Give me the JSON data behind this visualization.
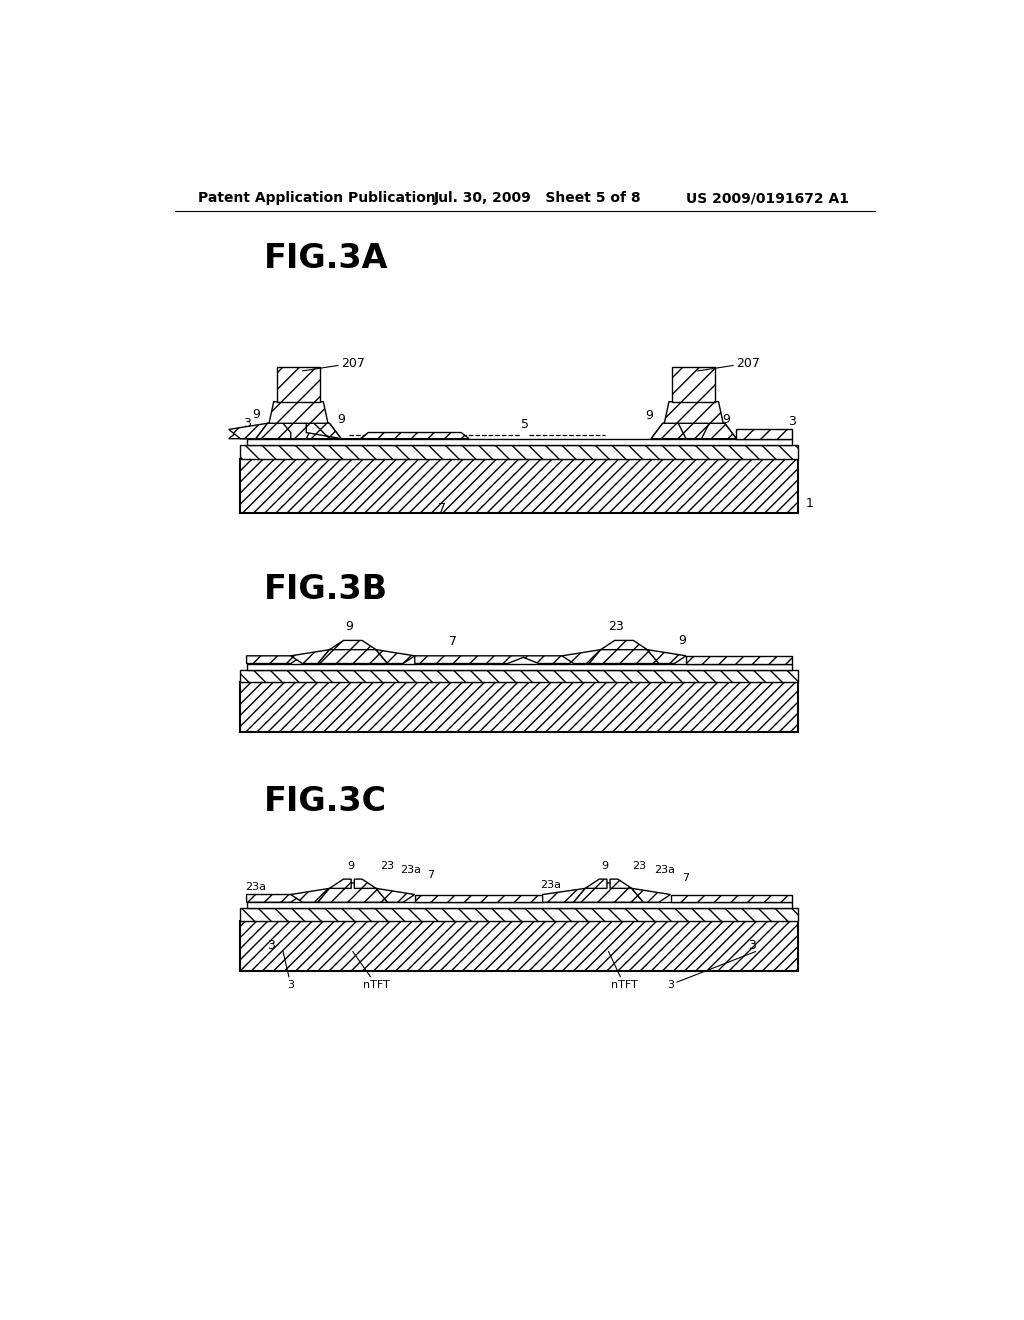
{
  "title_header": "Patent Application Publication",
  "date_header": "Jul. 30, 2009   Sheet 5 of 8",
  "patent_header": "US 2009/0191672 A1",
  "fig3a_label": "FIG.3A",
  "fig3b_label": "FIG.3B",
  "fig3c_label": "FIG.3C",
  "background_color": "#ffffff"
}
